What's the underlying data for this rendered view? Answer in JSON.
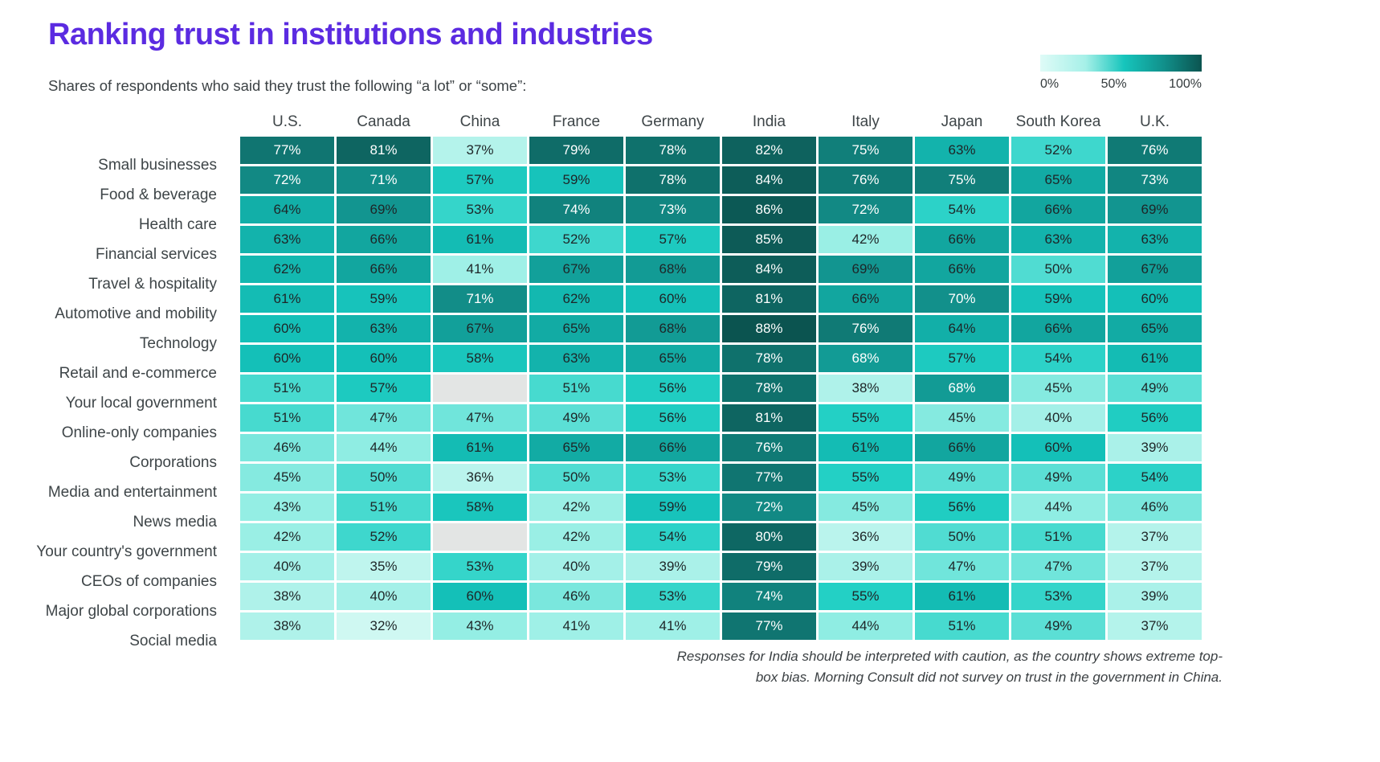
{
  "title": "Ranking trust in institutions and industries",
  "subtitle": "Shares of respondents who said they trust the following “a lot” or “some”:",
  "legend": {
    "min_label": "0%",
    "mid_label": "50%",
    "max_label": "100%",
    "stops": [
      [
        "0%",
        "#DFFBF7"
      ],
      [
        "28%",
        "#A6F0E8"
      ],
      [
        "52%",
        "#16C5BC"
      ],
      [
        "76%",
        "#11918C"
      ],
      [
        "100%",
        "#0B5450"
      ]
    ]
  },
  "footnote_lines": [
    "Responses for India should be interpreted with caution, as the country shows extreme top-",
    "box bias. Morning Consult did not survey on trust in the government in China."
  ],
  "colors": {
    "title": "#5B2BE1",
    "header_text": "#3E4548",
    "text_dark": "#1E2527",
    "text_light": "#FFFFFF",
    "missing_cell": "#E3E5E4",
    "background": "#FFFFFF"
  },
  "chart_data": {
    "type": "heatmap",
    "title": "Ranking trust in institutions and industries",
    "subtitle": "Shares of respondents who said they trust the following “a lot” or “some”:",
    "legend_position": "top-right",
    "scale": {
      "min": 0,
      "mid": 50,
      "max": 100,
      "unit": "%"
    },
    "columns": [
      "U.S.",
      "Canada",
      "China",
      "France",
      "Germany",
      "India",
      "Italy",
      "Japan",
      "South Korea",
      "U.K."
    ],
    "rows": [
      {
        "label": "Small businesses",
        "values": [
          77,
          81,
          37,
          79,
          78,
          82,
          75,
          63,
          52,
          76
        ]
      },
      {
        "label": "Food & beverage",
        "values": [
          72,
          71,
          57,
          59,
          78,
          84,
          76,
          75,
          65,
          73
        ]
      },
      {
        "label": "Health care",
        "values": [
          64,
          69,
          53,
          74,
          73,
          86,
          72,
          54,
          66,
          69
        ]
      },
      {
        "label": "Financial services",
        "values": [
          63,
          66,
          61,
          52,
          57,
          85,
          42,
          66,
          63,
          63
        ]
      },
      {
        "label": "Travel & hospitality",
        "values": [
          62,
          66,
          41,
          67,
          68,
          84,
          69,
          66,
          50,
          67
        ]
      },
      {
        "label": "Automotive and mobility",
        "values": [
          61,
          59,
          71,
          62,
          60,
          81,
          66,
          70,
          59,
          60
        ]
      },
      {
        "label": "Technology",
        "values": [
          60,
          63,
          67,
          65,
          68,
          88,
          76,
          64,
          66,
          65
        ]
      },
      {
        "label": "Retail and e-commerce",
        "values": [
          60,
          60,
          58,
          63,
          65,
          78,
          68,
          57,
          54,
          61
        ]
      },
      {
        "label": "Your local government",
        "values": [
          51,
          57,
          null,
          51,
          56,
          78,
          38,
          68,
          45,
          49
        ]
      },
      {
        "label": "Online-only companies",
        "values": [
          51,
          47,
          47,
          49,
          56,
          81,
          55,
          45,
          40,
          56
        ]
      },
      {
        "label": "Corporations",
        "values": [
          46,
          44,
          61,
          65,
          66,
          76,
          61,
          66,
          60,
          39
        ]
      },
      {
        "label": "Media and entertainment",
        "values": [
          45,
          50,
          36,
          50,
          53,
          77,
          55,
          49,
          49,
          54
        ]
      },
      {
        "label": "News media",
        "values": [
          43,
          51,
          58,
          42,
          59,
          72,
          45,
          56,
          44,
          46
        ]
      },
      {
        "label": "Your country's government",
        "values": [
          42,
          52,
          null,
          42,
          54,
          80,
          36,
          50,
          51,
          37
        ]
      },
      {
        "label": "CEOs of companies",
        "values": [
          40,
          35,
          53,
          40,
          39,
          79,
          39,
          47,
          47,
          37
        ]
      },
      {
        "label": "Major global corporations",
        "values": [
          38,
          40,
          60,
          46,
          53,
          74,
          55,
          61,
          53,
          39
        ]
      },
      {
        "label": "Social media",
        "values": [
          38,
          32,
          43,
          41,
          41,
          77,
          44,
          51,
          49,
          37
        ]
      }
    ],
    "missing_cells": [
      [
        8,
        2
      ],
      [
        13,
        2
      ]
    ],
    "white_text_threshold": 70,
    "white_text_exceptions": [
      [
        7,
        6
      ],
      [
        8,
        7
      ]
    ],
    "color_stops": [
      [
        30,
        "#D9FAF5"
      ],
      [
        38,
        "#AFF2EA"
      ],
      [
        44,
        "#8FEDE3"
      ],
      [
        50,
        "#50DCD2"
      ],
      [
        55,
        "#23D0C5"
      ],
      [
        60,
        "#14C0B8"
      ],
      [
        65,
        "#12ABA4"
      ],
      [
        70,
        "#12908B"
      ],
      [
        75,
        "#117F7A"
      ],
      [
        80,
        "#0E6763"
      ],
      [
        84,
        "#0D5D59"
      ],
      [
        88,
        "#0B5450"
      ]
    ]
  }
}
